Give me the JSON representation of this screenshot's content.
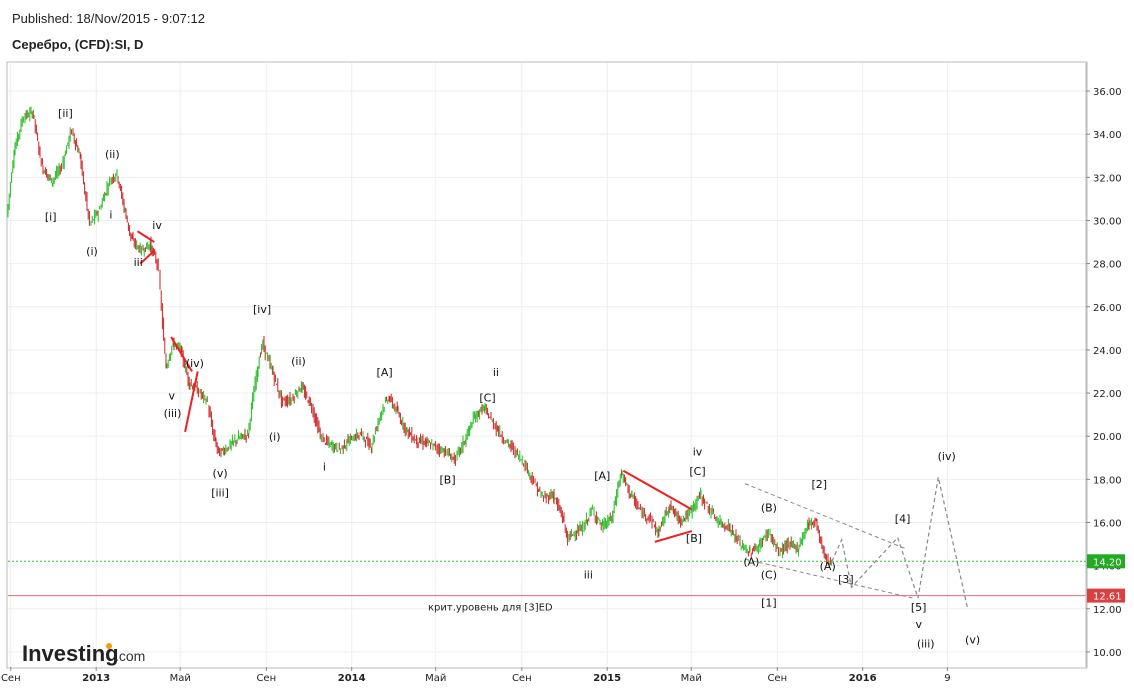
{
  "header": {
    "published": "Published: 18/Nov/2015 - 9:07:12",
    "symbol": "Серебро, (CFD):SI, D"
  },
  "brand": {
    "name": "Investing",
    "suffix": ".com"
  },
  "colors": {
    "up": "#22bb22",
    "down": "#cc2222",
    "triangle": "#ee2020",
    "current_line": "#33bb33",
    "crit_line": "#e07070",
    "current_tag": "#22aa22",
    "crit_tag": "#d94040",
    "projection": "#888888"
  },
  "chart_data": {
    "type": "line",
    "title": "Серебро, (CFD):SI, D",
    "ylim": [
      9.3,
      37.3
    ],
    "xlim": [
      "2012-08-28",
      "2016-11-15"
    ],
    "y_ticks": [
      36,
      34,
      32,
      30,
      28,
      26,
      24,
      22,
      20,
      18,
      16,
      14,
      12,
      10
    ],
    "y_tick_labels": [
      "36.00",
      "34.00",
      "32.00",
      "30.00",
      "28.00",
      "26.00",
      "24.00",
      "22.00",
      "20.00",
      "18.00",
      "16.00",
      "14.00",
      "12.00",
      "10.00"
    ],
    "x_ticks": [
      {
        "date": "2012-09-01",
        "label": "Сен",
        "bold": false
      },
      {
        "date": "2013-01-01",
        "label": "2013",
        "bold": true
      },
      {
        "date": "2013-05-01",
        "label": "Май",
        "bold": false
      },
      {
        "date": "2013-09-01",
        "label": "Сен",
        "bold": false
      },
      {
        "date": "2014-01-01",
        "label": "2014",
        "bold": true
      },
      {
        "date": "2014-05-01",
        "label": "Май",
        "bold": false
      },
      {
        "date": "2014-09-01",
        "label": "Сен",
        "bold": false
      },
      {
        "date": "2015-01-01",
        "label": "2015",
        "bold": true
      },
      {
        "date": "2015-05-01",
        "label": "Май",
        "bold": false
      },
      {
        "date": "2015-09-01",
        "label": "Сен",
        "bold": false
      },
      {
        "date": "2016-01-01",
        "label": "2016",
        "bold": true
      },
      {
        "date": "2016-05-01",
        "label": "9",
        "bold": false
      }
    ],
    "series": [
      {
        "values": [
          [
            "2012-08-28",
            30.2
          ],
          [
            "2012-09-07",
            33.2
          ],
          [
            "2012-09-20",
            34.8
          ],
          [
            "2012-10-04",
            35.0
          ],
          [
            "2012-10-17",
            32.5
          ],
          [
            "2012-10-31",
            31.8
          ],
          [
            "2012-11-14",
            32.5
          ],
          [
            "2012-11-28",
            34.2
          ],
          [
            "2012-12-10",
            33.0
          ],
          [
            "2012-12-24",
            29.8
          ],
          [
            "2013-01-07",
            30.5
          ],
          [
            "2013-01-21",
            31.8
          ],
          [
            "2013-02-01",
            32.2
          ],
          [
            "2013-02-12",
            30.5
          ],
          [
            "2013-02-22",
            29.1
          ],
          [
            "2013-03-08",
            28.6
          ],
          [
            "2013-03-20",
            28.9
          ],
          [
            "2013-04-01",
            27.9
          ],
          [
            "2013-04-12",
            23.2
          ],
          [
            "2013-04-22",
            24.3
          ],
          [
            "2013-05-03",
            24.0
          ],
          [
            "2013-05-15",
            22.5
          ],
          [
            "2013-05-28",
            22.1
          ],
          [
            "2013-06-10",
            21.6
          ],
          [
            "2013-06-20",
            19.9
          ],
          [
            "2013-06-27",
            19.2
          ],
          [
            "2013-07-10",
            19.5
          ],
          [
            "2013-07-24",
            19.9
          ],
          [
            "2013-08-07",
            20.1
          ],
          [
            "2013-08-20",
            23.0
          ],
          [
            "2013-08-28",
            24.3
          ],
          [
            "2013-09-10",
            23.1
          ],
          [
            "2013-09-25",
            21.6
          ],
          [
            "2013-10-08",
            21.7
          ],
          [
            "2013-10-22",
            22.3
          ],
          [
            "2013-11-06",
            21.4
          ],
          [
            "2013-11-20",
            19.9
          ],
          [
            "2013-12-03",
            19.6
          ],
          [
            "2013-12-17",
            19.4
          ],
          [
            "2014-01-02",
            19.9
          ],
          [
            "2014-01-16",
            20.1
          ],
          [
            "2014-01-30",
            19.5
          ],
          [
            "2014-02-14",
            21.2
          ],
          [
            "2014-02-24",
            21.8
          ],
          [
            "2014-03-07",
            21.2
          ],
          [
            "2014-03-21",
            20.3
          ],
          [
            "2014-04-04",
            19.8
          ],
          [
            "2014-04-18",
            19.7
          ],
          [
            "2014-05-02",
            19.5
          ],
          [
            "2014-05-16",
            19.3
          ],
          [
            "2014-05-30",
            18.9
          ],
          [
            "2014-06-13",
            19.8
          ],
          [
            "2014-06-27",
            20.9
          ],
          [
            "2014-07-10",
            21.3
          ],
          [
            "2014-07-24",
            20.6
          ],
          [
            "2014-08-07",
            19.9
          ],
          [
            "2014-08-21",
            19.4
          ],
          [
            "2014-09-05",
            18.8
          ],
          [
            "2014-09-19",
            17.9
          ],
          [
            "2014-10-03",
            17.1
          ],
          [
            "2014-10-17",
            17.3
          ],
          [
            "2014-10-31",
            16.2
          ],
          [
            "2014-11-07",
            15.2
          ],
          [
            "2014-11-14",
            15.5
          ],
          [
            "2014-11-28",
            15.7
          ],
          [
            "2014-12-12",
            16.6
          ],
          [
            "2014-12-26",
            15.8
          ],
          [
            "2015-01-09",
            16.2
          ],
          [
            "2015-01-22",
            18.3
          ],
          [
            "2015-02-05",
            17.3
          ],
          [
            "2015-02-19",
            16.5
          ],
          [
            "2015-03-05",
            16.2
          ],
          [
            "2015-03-16",
            15.5
          ],
          [
            "2015-04-01",
            16.8
          ],
          [
            "2015-04-16",
            16.1
          ],
          [
            "2015-04-30",
            16.4
          ],
          [
            "2015-05-15",
            17.3
          ],
          [
            "2015-05-28",
            16.6
          ],
          [
            "2015-06-11",
            16.0
          ],
          [
            "2015-06-25",
            15.8
          ],
          [
            "2015-07-09",
            15.1
          ],
          [
            "2015-07-24",
            14.6
          ],
          [
            "2015-08-07",
            14.9
          ],
          [
            "2015-08-21",
            15.6
          ],
          [
            "2015-09-04",
            14.6
          ],
          [
            "2015-09-18",
            15.0
          ],
          [
            "2015-10-02",
            14.8
          ],
          [
            "2015-10-16",
            15.9
          ],
          [
            "2015-10-27",
            16.1
          ],
          [
            "2015-11-05",
            14.9
          ],
          [
            "2015-11-12",
            14.2
          ],
          [
            "2015-11-18",
            14.2
          ]
        ]
      }
    ],
    "projection": [
      [
        "2015-11-18",
        14.2
      ],
      [
        "2015-12-02",
        15.2
      ],
      [
        "2015-12-16",
        13.0
      ],
      [
        "2016-02-20",
        15.3
      ],
      [
        "2016-03-20",
        12.5
      ],
      [
        "2016-04-18",
        18.1
      ],
      [
        "2016-05-30",
        12.0
      ]
    ],
    "trendlines": [
      [
        [
          "2015-07-17",
          17.8
        ],
        [
          "2016-03-01",
          14.8
        ]
      ],
      [
        [
          "2015-07-17",
          14.3
        ],
        [
          "2016-03-12",
          12.5
        ]
      ]
    ],
    "triangles": [
      [
        [
          "2013-03-01",
          29.5
        ],
        [
          "2013-03-25",
          29.0
        ],
        [
          "2013-03-05",
          28.0
        ],
        [
          "2013-03-25",
          28.6
        ]
      ],
      [
        [
          "2013-04-18",
          24.6
        ],
        [
          "2013-05-18",
          23.0
        ],
        [
          "2013-05-08",
          20.2
        ],
        [
          "2013-05-26",
          23.0
        ]
      ],
      [
        [
          "2015-01-24",
          18.4
        ],
        [
          "2015-05-02",
          16.6
        ],
        [
          "2015-03-10",
          15.1
        ],
        [
          "2015-05-02",
          15.6
        ]
      ]
    ],
    "current_price": {
      "value": 14.2,
      "label": "14.20"
    },
    "critical_level": {
      "value": 12.61,
      "label": "12.61",
      "text": "крит.уровень для [3]ED"
    },
    "wave_labels": [
      {
        "t": "[ii]",
        "x": "2012-11-18",
        "y": 34.8
      },
      {
        "t": "[i]",
        "x": "2012-10-28",
        "y": 30.0
      },
      {
        "t": "(ii)",
        "x": "2013-01-24",
        "y": 32.9
      },
      {
        "t": "(i)",
        "x": "2012-12-26",
        "y": 28.4
      },
      {
        "t": "i",
        "x": "2013-01-22",
        "y": 30.1
      },
      {
        "t": "iv",
        "x": "2013-03-29",
        "y": 29.6
      },
      {
        "t": "iii",
        "x": "2013-03-02",
        "y": 27.9
      },
      {
        "t": "[iv]",
        "x": "2013-08-26",
        "y": 25.7
      },
      {
        "t": "(iv)",
        "x": "2013-05-22",
        "y": 23.2
      },
      {
        "t": "v",
        "x": "2013-04-19",
        "y": 21.7
      },
      {
        "t": "(iii)",
        "x": "2013-04-20",
        "y": 20.9
      },
      {
        "t": "(v)",
        "x": "2013-06-27",
        "y": 18.1
      },
      {
        "t": "[iii]",
        "x": "2013-06-27",
        "y": 17.2
      },
      {
        "t": "(ii)",
        "x": "2013-10-17",
        "y": 23.3
      },
      {
        "t": "(i)",
        "x": "2013-09-13",
        "y": 19.8
      },
      {
        "t": "i",
        "x": "2013-11-23",
        "y": 18.4
      },
      {
        "t": "[A]",
        "x": "2014-02-17",
        "y": 22.8
      },
      {
        "t": "ii",
        "x": "2014-07-26",
        "y": 22.8
      },
      {
        "t": "[C]",
        "x": "2014-07-14",
        "y": 21.6
      },
      {
        "t": "[B]",
        "x": "2014-05-18",
        "y": 17.8
      },
      {
        "t": "[A]",
        "x": "2014-12-25",
        "y": 18.0
      },
      {
        "t": "iii",
        "x": "2014-12-05",
        "y": 13.4
      },
      {
        "t": "iv",
        "x": "2015-05-10",
        "y": 19.1
      },
      {
        "t": "[C]",
        "x": "2015-05-10",
        "y": 18.2
      },
      {
        "t": "[B]",
        "x": "2015-05-05",
        "y": 15.1
      },
      {
        "t": "(B)",
        "x": "2015-08-20",
        "y": 16.5
      },
      {
        "t": "[2]",
        "x": "2015-10-31",
        "y": 17.6
      },
      {
        "t": "(A)",
        "x": "2015-07-26",
        "y": 14.0
      },
      {
        "t": "(C)",
        "x": "2015-08-20",
        "y": 13.4
      },
      {
        "t": "[1]",
        "x": "2015-08-20",
        "y": 12.1
      },
      {
        "t": "(A)",
        "x": "2015-11-12",
        "y": 13.8
      },
      {
        "t": "[3]",
        "x": "2015-12-08",
        "y": 13.2
      },
      {
        "t": "[4]",
        "x": "2016-02-27",
        "y": 16.0
      },
      {
        "t": "[5]",
        "x": "2016-03-21",
        "y": 11.9
      },
      {
        "t": "v",
        "x": "2016-03-21",
        "y": 11.1
      },
      {
        "t": "(iii)",
        "x": "2016-03-31",
        "y": 10.2
      },
      {
        "t": "(iv)",
        "x": "2016-04-30",
        "y": 18.9
      },
      {
        "t": "(v)",
        "x": "2016-06-06",
        "y": 10.4
      }
    ]
  }
}
